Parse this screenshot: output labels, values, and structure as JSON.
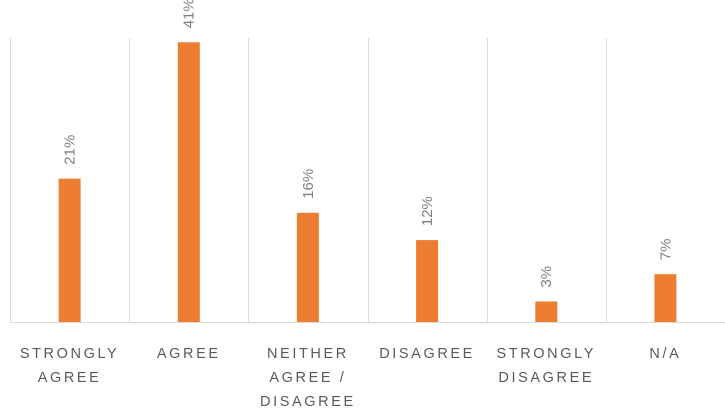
{
  "chart_data": {
    "type": "bar",
    "categories": [
      [
        "STRONGLY",
        "AGREE"
      ],
      [
        "AGREE"
      ],
      [
        "NEITHER",
        "AGREE /",
        "DISAGREE"
      ],
      [
        "DISAGREE"
      ],
      [
        "STRONGLY",
        "DISAGREE"
      ],
      [
        "N/A"
      ]
    ],
    "values": [
      21,
      41,
      16,
      12,
      3,
      7
    ],
    "value_labels": [
      "21%",
      "41%",
      "16%",
      "12%",
      "3%",
      "7%"
    ],
    "ylim": [
      0,
      45
    ],
    "bar_color": "#ed7d31",
    "grid": "vertical separators between categories"
  }
}
